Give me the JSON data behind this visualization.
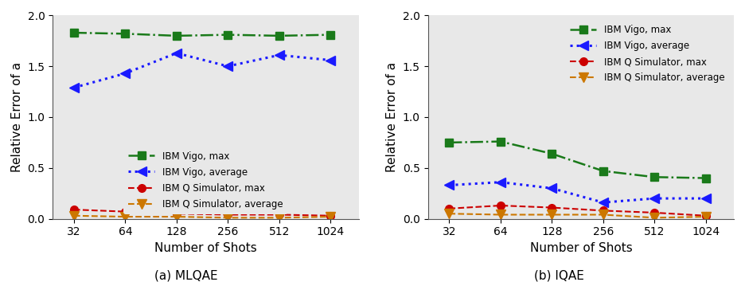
{
  "shots": [
    32,
    64,
    128,
    256,
    512,
    1024
  ],
  "mlqae": {
    "ibm_vigo_max": [
      1.83,
      1.82,
      1.8,
      1.81,
      1.8,
      1.81
    ],
    "ibm_vigo_avg": [
      1.29,
      1.43,
      1.63,
      1.5,
      1.61,
      1.56
    ],
    "sim_max": [
      0.09,
      0.07,
      0.05,
      0.04,
      0.04,
      0.03
    ],
    "sim_avg": [
      0.03,
      0.02,
      0.02,
      0.01,
      0.01,
      0.02
    ]
  },
  "iqae": {
    "ibm_vigo_max": [
      0.75,
      0.76,
      0.64,
      0.47,
      0.41,
      0.4
    ],
    "ibm_vigo_avg": [
      0.33,
      0.36,
      0.3,
      0.16,
      0.2,
      0.2
    ],
    "sim_max": [
      0.1,
      0.13,
      0.11,
      0.08,
      0.06,
      0.03
    ],
    "sim_avg": [
      0.05,
      0.04,
      0.04,
      0.04,
      0.01,
      0.02
    ]
  },
  "colors": {
    "ibm_vigo_max": "#1a7a1a",
    "ibm_vigo_avg": "#1a1aff",
    "sim_max": "#cc0000",
    "sim_avg": "#cc7700"
  },
  "legend_labels": {
    "ibm_vigo_max": "IBM Vigo, max",
    "ibm_vigo_avg": "IBM Vigo, average",
    "sim_max": "IBM Q Simulator, max",
    "sim_avg": "IBM Q Simulator, average"
  },
  "ylim": [
    0,
    2.0
  ],
  "yticks": [
    0.0,
    0.5,
    1.0,
    1.5,
    2.0
  ],
  "ylabel": "Relative Error of a",
  "xlabel": "Number of Shots",
  "caption_a": "(a) MLQAE",
  "caption_b": "(b) IQAE",
  "xtick_labels": [
    "32",
    "64",
    "128",
    "256",
    "512",
    "1024"
  ],
  "legend_loc_a": "lower center",
  "legend_loc_b": "upper right",
  "bg_color": "#e8e8e8"
}
